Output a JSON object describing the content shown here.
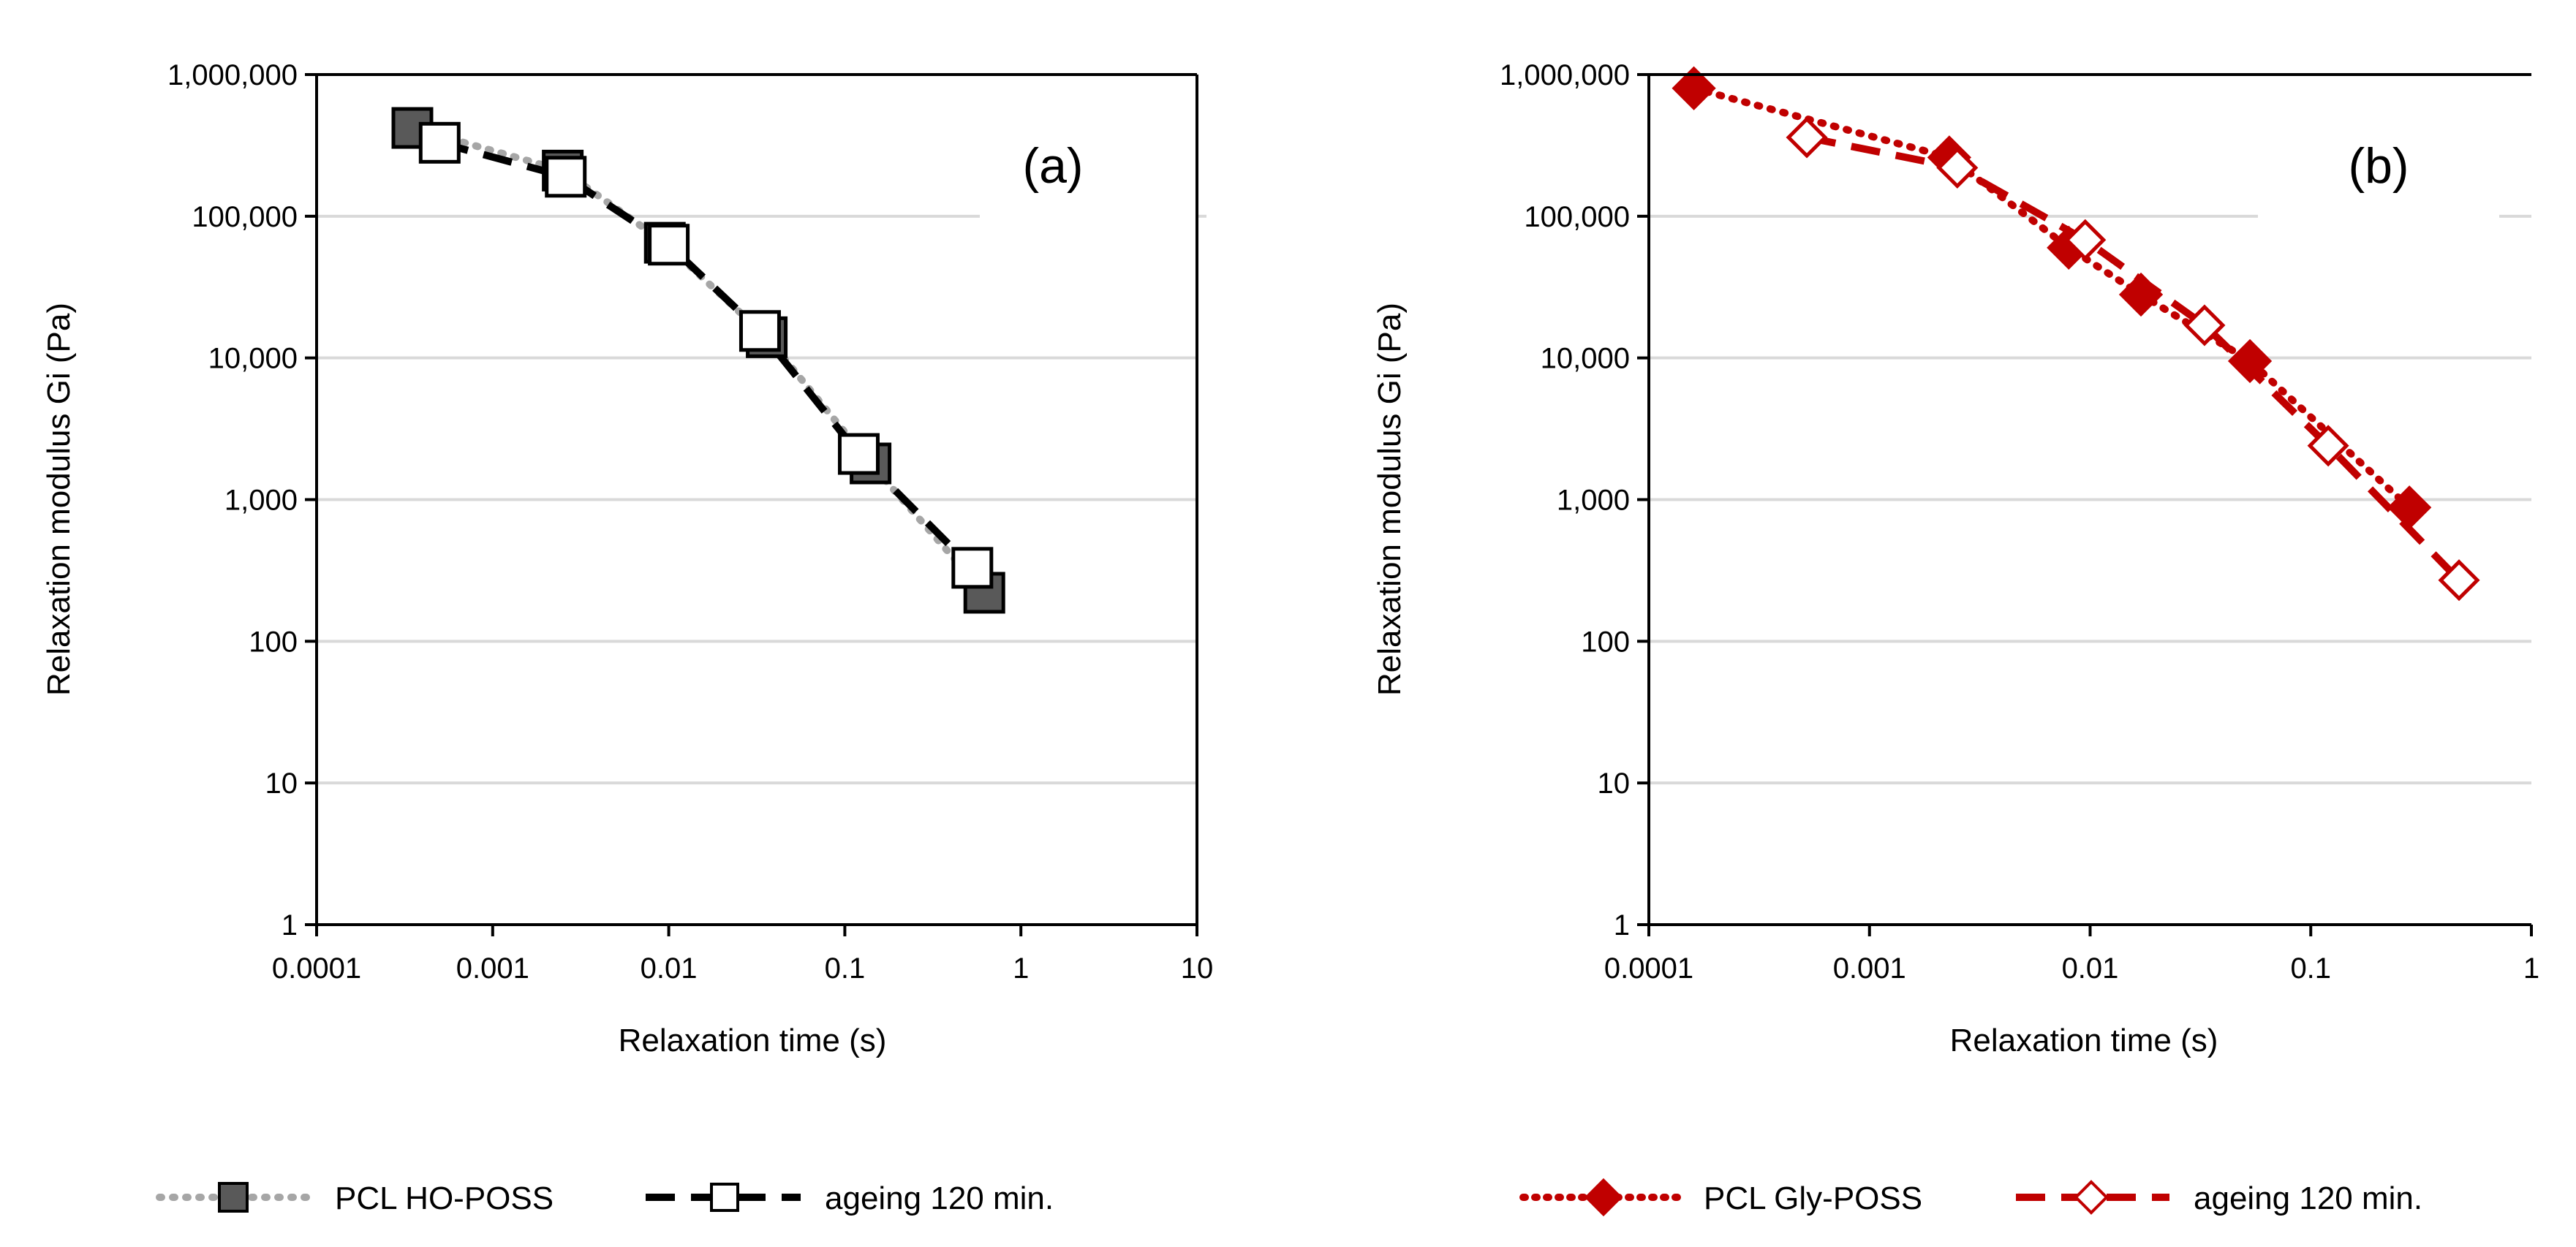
{
  "chart_data": [
    {
      "type": "scatter",
      "panel_label": "(a)",
      "title": "",
      "xlabel": "Relaxation time (s)",
      "ylabel": "Relaxation modulus Gi (Pa)",
      "xscale": "log",
      "yscale": "log",
      "xlim": [
        0.0001,
        10
      ],
      "ylim": [
        1,
        1000000
      ],
      "xticks": [
        {
          "v": 0.0001,
          "label": "0.0001"
        },
        {
          "v": 0.001,
          "label": "0.001"
        },
        {
          "v": 0.01,
          "label": "0.01"
        },
        {
          "v": 0.1,
          "label": "0.1"
        },
        {
          "v": 1,
          "label": "1"
        },
        {
          "v": 10,
          "label": "10"
        }
      ],
      "yticks": [
        {
          "v": 1,
          "label": "1"
        },
        {
          "v": 10,
          "label": "10"
        },
        {
          "v": 100,
          "label": "100"
        },
        {
          "v": 1000,
          "label": "1,000"
        },
        {
          "v": 10000,
          "label": "10,000"
        },
        {
          "v": 100000,
          "label": "100,000"
        },
        {
          "v": 1000000,
          "label": "1,000,000"
        }
      ],
      "grid": true,
      "series": [
        {
          "name": "PCL HO-POSS",
          "marker": "square-filled",
          "line": "dotted",
          "line_color": "#a6a6a6",
          "marker_fill": "#595959",
          "marker_stroke": "#000000",
          "x": [
            0.00035,
            0.0025,
            0.0095,
            0.036,
            0.14,
            0.62
          ],
          "y": [
            420000,
            210000,
            65000,
            14000,
            1800,
            220
          ]
        },
        {
          "name": "ageing 120 min.",
          "marker": "square-open",
          "line": "dashed",
          "line_color": "#000000",
          "marker_fill": "#ffffff",
          "marker_stroke": "#000000",
          "x": [
            0.0005,
            0.0026,
            0.01,
            0.033,
            0.12,
            0.53
          ],
          "y": [
            330000,
            190000,
            63000,
            15500,
            2100,
            330
          ]
        }
      ]
    },
    {
      "type": "scatter",
      "panel_label": "(b)",
      "title": "",
      "xlabel": "Relaxation time (s)",
      "ylabel": "Relaxation modulus Gi (Pa)",
      "xscale": "log",
      "yscale": "log",
      "xlim": [
        0.0001,
        1
      ],
      "ylim": [
        1,
        1000000
      ],
      "xticks": [
        {
          "v": 0.0001,
          "label": "0.0001"
        },
        {
          "v": 0.001,
          "label": "0.001"
        },
        {
          "v": 0.01,
          "label": "0.01"
        },
        {
          "v": 0.1,
          "label": "0.1"
        },
        {
          "v": 1,
          "label": "1"
        }
      ],
      "yticks": [
        {
          "v": 1,
          "label": "1"
        },
        {
          "v": 10,
          "label": "10"
        },
        {
          "v": 100,
          "label": "100"
        },
        {
          "v": 1000,
          "label": "1,000"
        },
        {
          "v": 10000,
          "label": "10,000"
        },
        {
          "v": 100000,
          "label": "100,000"
        },
        {
          "v": 1000000,
          "label": "1,000,000"
        }
      ],
      "grid": true,
      "series": [
        {
          "name": "PCL Gly-POSS",
          "marker": "diamond-filled",
          "line": "dotted",
          "line_color": "#c00000",
          "marker_fill": "#c00000",
          "marker_stroke": "#c00000",
          "x": [
            0.00016,
            0.0023,
            0.008,
            0.017,
            0.053,
            0.28
          ],
          "y": [
            800000,
            260000,
            60000,
            28000,
            9500,
            880
          ]
        },
        {
          "name": "ageing 120 min.",
          "marker": "diamond-open",
          "line": "dashed",
          "line_color": "#c00000",
          "marker_fill": "#ffffff",
          "marker_stroke": "#c00000",
          "x": [
            0.00052,
            0.0025,
            0.0095,
            0.033,
            0.12,
            0.47
          ],
          "y": [
            360000,
            220000,
            68000,
            17000,
            2400,
            270
          ]
        }
      ]
    }
  ]
}
